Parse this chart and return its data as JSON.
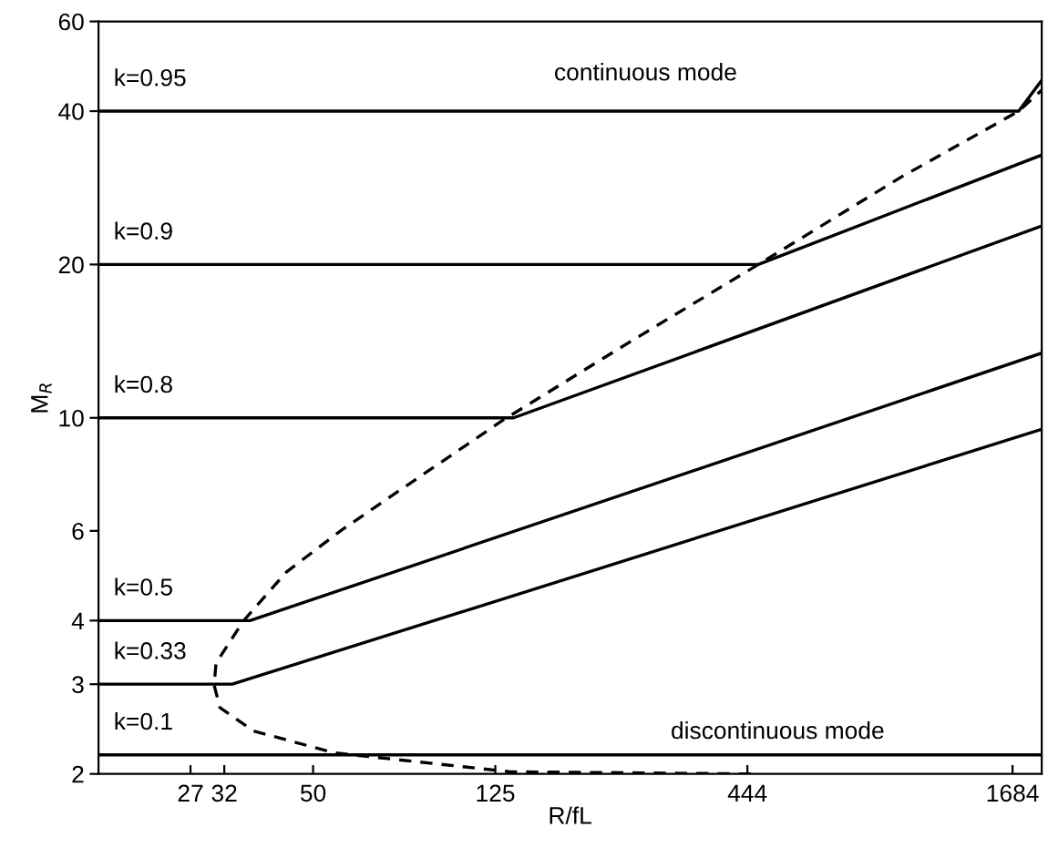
{
  "chart_data": {
    "type": "line",
    "xlabel": "R/fL",
    "ylabel": "M$_{R}$",
    "log": "xy",
    "grid": false,
    "legend": "left",
    "marker": "none",
    "xlim": [
      17,
      1950
    ],
    "xticks": [
      27,
      32,
      50,
      125,
      444,
      1684
    ],
    "ylim": [
      2,
      60
    ],
    "yticks": [
      2,
      3,
      4,
      6,
      10,
      20,
      40,
      60
    ],
    "series": [
      {
        "name": "k=0.95",
        "color": "#000000",
        "line_style": "solid",
        "x": [
          17,
          1737,
          1950
        ],
        "values": [
          40,
          40,
          46
        ]
      },
      {
        "name": "k=0.9",
        "color": "#000000",
        "line_style": "solid",
        "x": [
          17,
          469,
          1950
        ],
        "values": [
          20,
          20,
          32.8
        ]
      },
      {
        "name": "k=0.8",
        "color": "#000000",
        "line_style": "solid",
        "x": [
          17,
          137,
          1950
        ],
        "values": [
          10,
          10,
          23.8
        ]
      },
      {
        "name": "k=0.5",
        "color": "#000000",
        "line_style": "solid",
        "x": [
          17,
          36.4,
          1950
        ],
        "values": [
          4,
          4,
          13.4
        ]
      },
      {
        "name": "k=0.33",
        "color": "#000000",
        "line_style": "solid",
        "x": [
          17,
          33.3,
          1950
        ],
        "values": [
          3,
          3,
          9.5
        ]
      },
      {
        "name": "k=0.1",
        "color": "#000000",
        "line_style": "solid",
        "x": [
          17,
          1950
        ],
        "values": [
          2.18,
          2.18
        ]
      },
      {
        "color": "#000000",
        "line_style": "dashed",
        "x": [
          452,
          134,
          55.6,
          37.0,
          31.3,
          30.4,
          30.7,
          35.2,
          43.7,
          57.4,
          72.7,
          130,
          246,
          469,
          962,
          1737,
          1950
        ],
        "values": [
          2.0,
          2.02,
          2.2,
          2.43,
          2.7,
          2.99,
          3.3,
          3.99,
          4.98,
          6.0,
          6.94,
          9.9,
          14.1,
          20,
          29.7,
          40,
          44
        ]
      }
    ],
    "annotations": [
      "continuous mode",
      "discontinuous mode"
    ]
  }
}
